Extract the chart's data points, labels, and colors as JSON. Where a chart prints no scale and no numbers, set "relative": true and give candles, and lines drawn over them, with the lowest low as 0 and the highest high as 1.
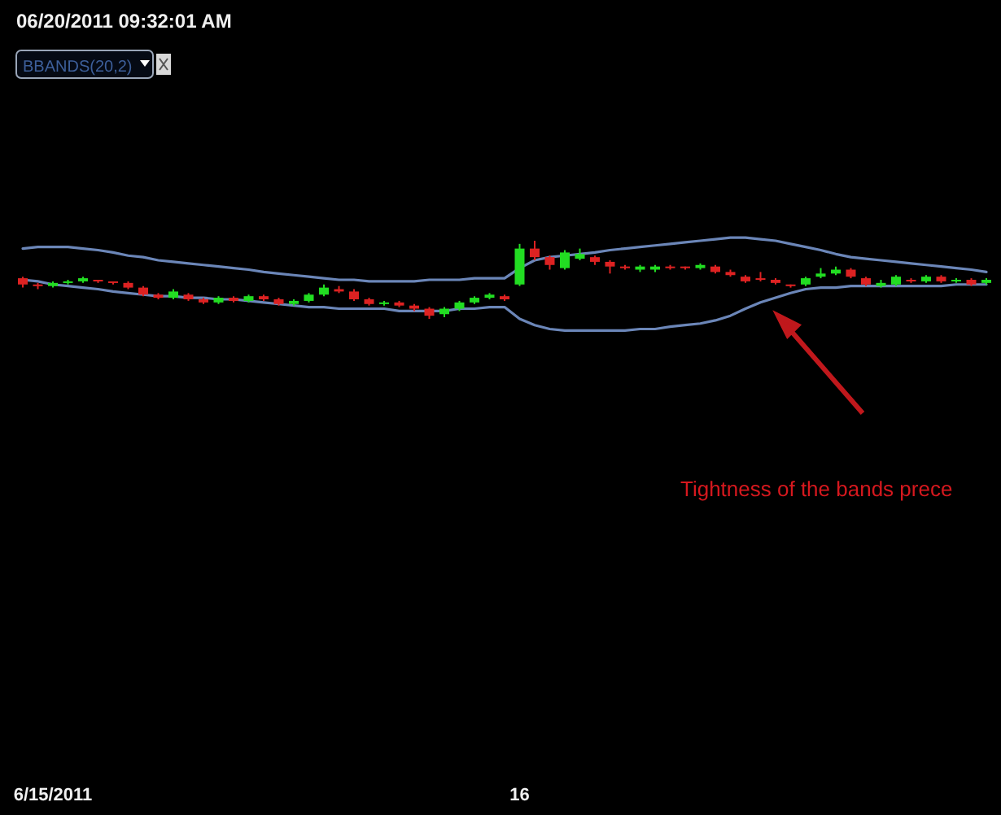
{
  "chart_data": {
    "type": "candlestick",
    "title": "06/20/2011 09:32:01 AM",
    "relative": true,
    "categories": [
      null,
      null,
      "6/15/2011",
      null,
      null,
      null,
      null,
      null,
      null,
      null,
      null,
      null,
      null,
      null,
      null,
      null,
      null,
      null,
      null,
      null,
      null,
      null,
      null,
      null,
      null,
      null,
      null,
      null,
      null,
      null,
      null,
      null,
      null,
      "16",
      null,
      null,
      null,
      null,
      null,
      null,
      null,
      null,
      null,
      null,
      null,
      null,
      null,
      null,
      null,
      null,
      null,
      null,
      null,
      null,
      null,
      null,
      null,
      null,
      null,
      null,
      null,
      null,
      null,
      null,
      null
    ],
    "colors": [
      "#dd2222",
      "#dd2222",
      "#22dd22",
      "#22dd22",
      "#22dd22",
      "#dd2222",
      "#dd2222",
      "#dd2222",
      "#dd2222",
      "#dd2222",
      "#22dd22",
      "#dd2222",
      "#dd2222",
      "#22dd22",
      "#dd2222",
      "#22dd22",
      "#dd2222",
      "#dd2222",
      "#22dd22",
      "#22dd22",
      "#22dd22",
      "#dd2222",
      "#dd2222",
      "#dd2222",
      "#22dd22",
      "#dd2222",
      "#dd2222",
      "#dd2222",
      "#22dd22",
      "#22dd22",
      "#22dd22",
      "#22dd22",
      "#dd2222",
      "#22dd22",
      "#dd2222",
      "#dd2222",
      "#22dd22",
      "#22dd22",
      "#dd2222",
      "#dd2222",
      "#dd2222",
      "#22dd22",
      "#22dd22",
      "#dd2222",
      "#dd2222",
      "#22dd22",
      "#dd2222",
      "#dd2222",
      "#dd2222",
      "#dd2222",
      "#dd2222",
      "#dd2222",
      "#22dd22",
      "#22dd22",
      "#22dd22",
      "#dd2222",
      "#dd2222",
      "#22dd22",
      "#22dd22",
      "#dd2222",
      "#22dd22",
      "#dd2222",
      "#22dd22",
      "#dd2222",
      "#22dd22"
    ],
    "ohlc": [
      [
        0.52,
        0.54,
        0.4,
        0.44
      ],
      [
        0.44,
        0.46,
        0.38,
        0.42
      ],
      [
        0.42,
        0.48,
        0.4,
        0.46
      ],
      [
        0.46,
        0.5,
        0.44,
        0.48
      ],
      [
        0.48,
        0.54,
        0.46,
        0.52
      ],
      [
        0.5,
        0.5,
        0.46,
        0.48
      ],
      [
        0.48,
        0.48,
        0.44,
        0.46
      ],
      [
        0.46,
        0.48,
        0.38,
        0.4
      ],
      [
        0.4,
        0.42,
        0.29,
        0.31
      ],
      [
        0.31,
        0.33,
        0.25,
        0.27
      ],
      [
        0.27,
        0.38,
        0.25,
        0.35
      ],
      [
        0.31,
        0.33,
        0.23,
        0.25
      ],
      [
        0.25,
        0.27,
        0.19,
        0.21
      ],
      [
        0.21,
        0.29,
        0.19,
        0.27
      ],
      [
        0.27,
        0.29,
        0.21,
        0.23
      ],
      [
        0.23,
        0.31,
        0.21,
        0.29
      ],
      [
        0.29,
        0.31,
        0.23,
        0.25
      ],
      [
        0.25,
        0.27,
        0.17,
        0.19
      ],
      [
        0.19,
        0.25,
        0.17,
        0.23
      ],
      [
        0.23,
        0.33,
        0.21,
        0.31
      ],
      [
        0.31,
        0.44,
        0.29,
        0.4
      ],
      [
        0.38,
        0.42,
        0.33,
        0.35
      ],
      [
        0.35,
        0.38,
        0.23,
        0.25
      ],
      [
        0.25,
        0.27,
        0.17,
        0.19
      ],
      [
        0.19,
        0.23,
        0.17,
        0.21
      ],
      [
        0.21,
        0.23,
        0.15,
        0.17
      ],
      [
        0.17,
        0.19,
        0.1,
        0.13
      ],
      [
        0.13,
        0.15,
        0,
        0.04
      ],
      [
        0.06,
        0.15,
        0.02,
        0.13
      ],
      [
        0.13,
        0.23,
        0.1,
        0.21
      ],
      [
        0.21,
        0.29,
        0.19,
        0.27
      ],
      [
        0.27,
        0.33,
        0.25,
        0.31
      ],
      [
        0.29,
        0.31,
        0.23,
        0.25
      ],
      [
        0.44,
        0.96,
        0.42,
        0.9
      ],
      [
        0.9,
        1,
        0.75,
        0.79
      ],
      [
        0.79,
        0.81,
        0.63,
        0.69
      ],
      [
        0.65,
        0.88,
        0.63,
        0.85
      ],
      [
        0.77,
        0.9,
        0.75,
        0.83
      ],
      [
        0.79,
        0.81,
        0.69,
        0.73
      ],
      [
        0.73,
        0.75,
        0.58,
        0.67
      ],
      [
        0.67,
        0.69,
        0.63,
        0.65
      ],
      [
        0.63,
        0.69,
        0.6,
        0.67
      ],
      [
        0.63,
        0.69,
        0.6,
        0.67
      ],
      [
        0.67,
        0.69,
        0.63,
        0.65
      ],
      [
        0.67,
        0.67,
        0.63,
        0.65
      ],
      [
        0.65,
        0.71,
        0.63,
        0.69
      ],
      [
        0.67,
        0.69,
        0.58,
        0.6
      ],
      [
        0.6,
        0.63,
        0.54,
        0.56
      ],
      [
        0.54,
        0.56,
        0.46,
        0.48
      ],
      [
        0.52,
        0.6,
        0.48,
        0.5
      ],
      [
        0.5,
        0.52,
        0.44,
        0.46
      ],
      [
        0.44,
        0.44,
        0.4,
        0.42
      ],
      [
        0.44,
        0.54,
        0.42,
        0.52
      ],
      [
        0.54,
        0.65,
        0.52,
        0.58
      ],
      [
        0.58,
        0.67,
        0.56,
        0.63
      ],
      [
        0.63,
        0.65,
        0.52,
        0.54
      ],
      [
        0.52,
        0.54,
        0.42,
        0.44
      ],
      [
        0.42,
        0.5,
        0.4,
        0.46
      ],
      [
        0.44,
        0.56,
        0.42,
        0.54
      ],
      [
        0.5,
        0.52,
        0.46,
        0.48
      ],
      [
        0.48,
        0.56,
        0.46,
        0.54
      ],
      [
        0.54,
        0.56,
        0.46,
        0.48
      ],
      [
        0.48,
        0.52,
        0.46,
        0.5
      ],
      [
        0.5,
        0.52,
        0.42,
        0.44
      ],
      [
        0.46,
        0.52,
        0.44,
        0.5
      ]
    ],
    "series": [
      {
        "type": "line",
        "color": "#6b86b8",
        "values": [
          0.9,
          0.92,
          0.92,
          0.92,
          0.9,
          0.88,
          0.85,
          0.81,
          0.79,
          0.75,
          0.73,
          0.71,
          0.69,
          0.67,
          0.65,
          0.63,
          0.6,
          0.58,
          0.56,
          0.54,
          0.52,
          0.5,
          0.5,
          0.48,
          0.48,
          0.48,
          0.48,
          0.5,
          0.5,
          0.5,
          0.52,
          0.52,
          0.52,
          0.65,
          0.75,
          0.79,
          0.81,
          0.83,
          0.85,
          0.88,
          0.9,
          0.92,
          0.94,
          0.96,
          0.98,
          1.0,
          1.02,
          1.04,
          1.04,
          1.02,
          1.0,
          0.96,
          0.92,
          0.88,
          0.83,
          0.79,
          0.77,
          0.75,
          0.73,
          0.71,
          0.69,
          0.67,
          0.65,
          0.63,
          0.6
        ]
      },
      {
        "type": "line",
        "color": "#6b86b8",
        "values": [
          0.5,
          0.48,
          0.44,
          0.42,
          0.4,
          0.38,
          0.35,
          0.33,
          0.31,
          0.29,
          0.29,
          0.27,
          0.27,
          0.25,
          0.25,
          0.23,
          0.21,
          0.19,
          0.17,
          0.15,
          0.15,
          0.13,
          0.13,
          0.13,
          0.13,
          0.1,
          0.1,
          0.1,
          0.1,
          0.13,
          0.13,
          0.15,
          0.15,
          0,
          -0.08,
          -0.13,
          -0.15,
          -0.15,
          -0.15,
          -0.15,
          -0.15,
          -0.13,
          -0.13,
          -0.1,
          -0.08,
          -0.06,
          -0.02,
          0.04,
          0.13,
          0.21,
          0.27,
          0.33,
          0.38,
          0.4,
          0.4,
          0.42,
          0.42,
          0.42,
          0.42,
          0.42,
          0.42,
          0.42,
          0.44,
          0.44,
          0.44
        ]
      }
    ],
    "annotations": [
      "BBANDS(20,2)",
      "Tightness of the bands prece"
    ]
  }
}
